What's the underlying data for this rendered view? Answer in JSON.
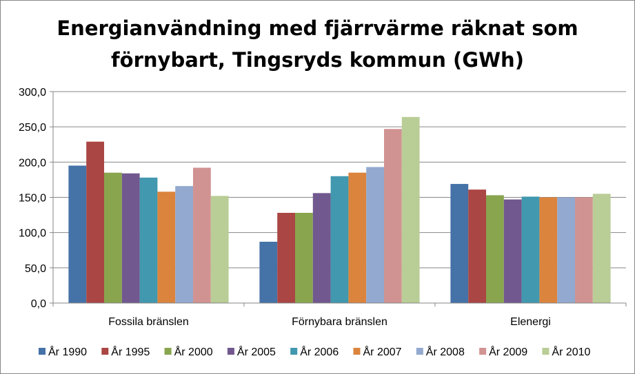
{
  "chart_data": {
    "type": "bar",
    "title_line1": "Energianvändning med fjärrvärme räknat som",
    "title_line2": "förnybart, Tingsryds kommun (GWh)",
    "categories": [
      "Fossila bränslen",
      "Förnybara bränslen",
      "Elenergi"
    ],
    "ylim": [
      0,
      300
    ],
    "yticks": [
      "0,0",
      "50,0",
      "100,0",
      "150,0",
      "200,0",
      "250,0",
      "300,0"
    ],
    "ytick_values": [
      0,
      50,
      100,
      150,
      200,
      250,
      300
    ],
    "grid": true,
    "legend_position": "bottom",
    "series": [
      {
        "name": "År 1990",
        "color": "#4572A7",
        "values": [
          195,
          87,
          169
        ]
      },
      {
        "name": "År 1995",
        "color": "#AA4643",
        "values": [
          229,
          128,
          161
        ]
      },
      {
        "name": "År 2000",
        "color": "#89A54E",
        "values": [
          185,
          128,
          153
        ]
      },
      {
        "name": "År 2005",
        "color": "#71588F",
        "values": [
          184,
          156,
          147
        ]
      },
      {
        "name": "År 2006",
        "color": "#4198AF",
        "values": [
          178,
          180,
          151
        ]
      },
      {
        "name": "År 2007",
        "color": "#DB843D",
        "values": [
          158,
          185,
          150
        ]
      },
      {
        "name": "År 2008",
        "color": "#93A9CF",
        "values": [
          166,
          193,
          150
        ]
      },
      {
        "name": "År 2009",
        "color": "#D19392",
        "values": [
          192,
          247,
          150
        ]
      },
      {
        "name": "År 2010",
        "color": "#B9CD96",
        "values": [
          152,
          264,
          155
        ]
      }
    ]
  }
}
